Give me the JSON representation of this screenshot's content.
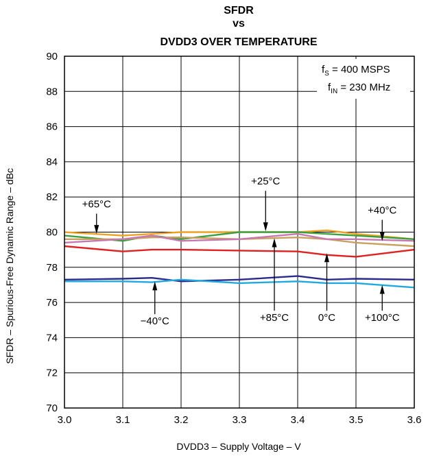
{
  "chart_data": {
    "type": "line",
    "title": [
      "SFDR",
      "vs",
      "DVDD3 OVER TEMPERATURE"
    ],
    "xlabel": "DVDD3 – Supply Voltage – V",
    "ylabel": "SFDR – Spurious-Free Dynamic Range – dBc",
    "xlim": [
      3.0,
      3.6
    ],
    "ylim": [
      70,
      90
    ],
    "x_ticks": [
      "3.0",
      "3.1",
      "3.2",
      "3.3",
      "3.4",
      "3.5",
      "3.6"
    ],
    "y_ticks": [
      "70",
      "72",
      "74",
      "76",
      "78",
      "80",
      "82",
      "84",
      "86",
      "88",
      "90"
    ],
    "grid": true,
    "conditions": {
      "fs": {
        "main": "f",
        "sub": "S",
        "rest": " = 400 MSPS"
      },
      "fin": {
        "main": "f",
        "sub": "IN",
        "rest": " = 230 MHz"
      }
    },
    "x": [
      3.0,
      3.1,
      3.15,
      3.2,
      3.3,
      3.4,
      3.45,
      3.5,
      3.6
    ],
    "series": [
      {
        "name": "+65°C",
        "color": "#f0a020",
        "values": [
          80.0,
          79.8,
          79.9,
          80.0,
          80.0,
          80.0,
          80.1,
          79.9,
          79.6
        ]
      },
      {
        "name": "+25°C",
        "color": "#3aa040",
        "values": [
          79.8,
          79.5,
          79.8,
          79.6,
          80.0,
          80.0,
          79.9,
          79.8,
          79.6
        ]
      },
      {
        "name": "+40°C",
        "color": "#c8a060",
        "values": [
          79.6,
          79.6,
          79.7,
          79.7,
          79.6,
          79.7,
          79.6,
          79.4,
          79.2
        ]
      },
      {
        "name": "+85°C",
        "color": "#c878b0",
        "values": [
          79.4,
          79.6,
          79.8,
          79.5,
          79.6,
          79.9,
          79.6,
          79.6,
          79.5
        ]
      },
      {
        "name": "0°C",
        "color": "#e02020",
        "values": [
          79.2,
          78.9,
          79.0,
          79.0,
          78.95,
          78.9,
          78.7,
          78.6,
          79.0
        ]
      },
      {
        "name": "−40°C",
        "color": "#2a2a8a",
        "values": [
          77.3,
          77.35,
          77.4,
          77.2,
          77.3,
          77.5,
          77.3,
          77.35,
          77.3
        ]
      },
      {
        "name": "+100°C",
        "color": "#20a8e0",
        "values": [
          77.2,
          77.2,
          77.15,
          77.3,
          77.1,
          77.2,
          77.1,
          77.1,
          76.85
        ]
      }
    ],
    "annotations": [
      {
        "text": "+65°C",
        "x": 3.055,
        "tip": 79.9,
        "label_y": 81.4,
        "dir": "down"
      },
      {
        "text": "+25°C",
        "x": 3.345,
        "tip": 80.05,
        "label_y": 82.7,
        "dir": "down"
      },
      {
        "text": "+40°C",
        "x": 3.545,
        "tip": 79.5,
        "label_y": 81.05,
        "dir": "down"
      },
      {
        "text": "+85°C",
        "x": 3.36,
        "tip": 79.65,
        "label_y": 74.95,
        "dir": "up"
      },
      {
        "text": "0°C",
        "x": 3.45,
        "tip": 78.8,
        "label_y": 74.95,
        "dir": "up"
      },
      {
        "text": "−40°C",
        "x": 3.155,
        "tip": 77.2,
        "label_y": 74.75,
        "dir": "up"
      },
      {
        "text": "+100°C",
        "x": 3.545,
        "tip": 77.0,
        "label_y": 74.95,
        "dir": "up"
      }
    ]
  }
}
